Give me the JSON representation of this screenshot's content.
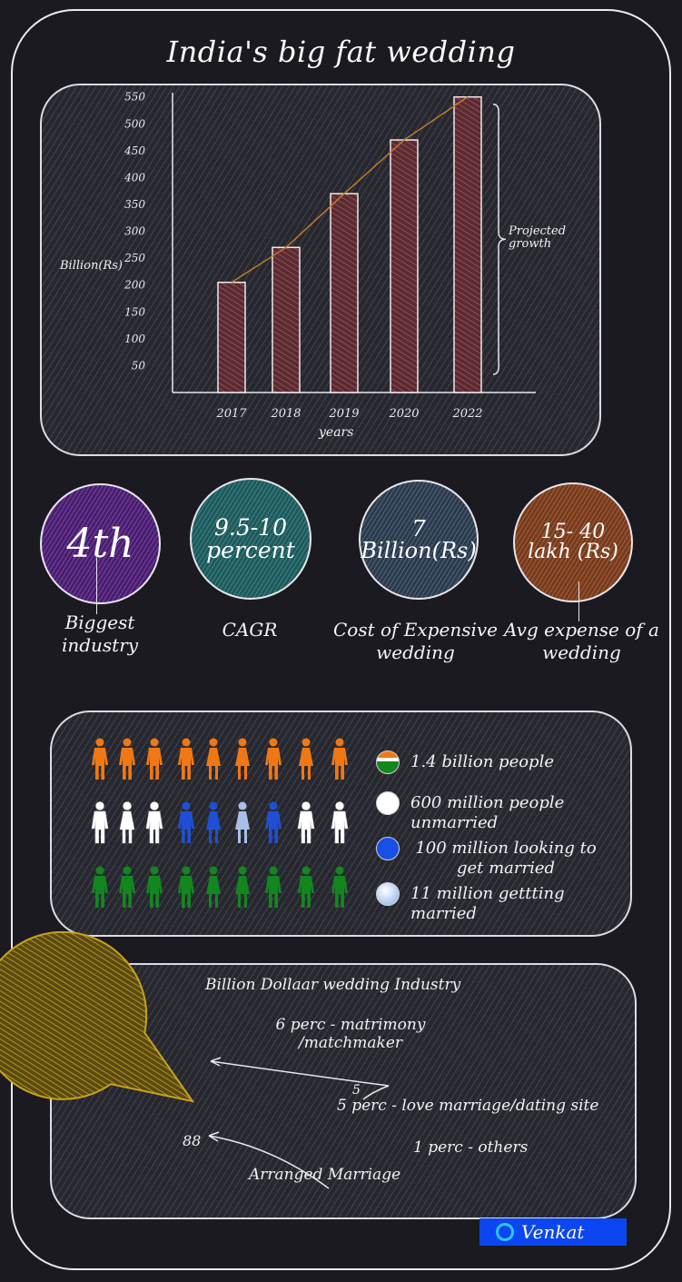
{
  "title": "India's big fat wedding",
  "chart_data": {
    "type": "bar",
    "title": "",
    "xlabel": "years",
    "ylabel": "Billion(Rs)",
    "categories": [
      "2017",
      "2018",
      "2019",
      "2020",
      "2022"
    ],
    "values": [
      205,
      270,
      370,
      470,
      550
    ],
    "yticks": [
      50,
      100,
      150,
      200,
      250,
      300,
      350,
      400,
      450,
      500,
      550
    ],
    "ylim": [
      0,
      558
    ],
    "annotation": "Projected growth",
    "trend_line": true,
    "bar_color": "#5a2b30",
    "trend_color": "#c47a2a"
  },
  "stats": [
    {
      "value": "4th",
      "label": "Biggest industry",
      "color": "#4b1c73"
    },
    {
      "value": "9.5-10 percent",
      "label": "CAGR",
      "color": "#1b5b5d"
    },
    {
      "value": "7 Billion(Rs)",
      "label": "Cost of Expensive wedding",
      "color": "#2a3b4f"
    },
    {
      "value": "15- 40 lakh (Rs)",
      "label": "Avg expense of a wedding",
      "color": "#7a3a1a"
    }
  ],
  "population": {
    "rows": [
      {
        "color": "#f07814",
        "count": 9
      },
      {
        "color": "#ffffff",
        "count": 9,
        "accents": [
          "#ffffff",
          "#ffffff",
          "#ffffff",
          "#1f4fd6",
          "#1f4fd6",
          "#a9bfe8",
          "#1f4fd6",
          "#ffffff",
          "#ffffff"
        ]
      },
      {
        "color": "#12861f",
        "count": 9
      }
    ],
    "legend": [
      {
        "text": "1.4 billion people",
        "color": "#6a8f2a"
      },
      {
        "text": "600 million people unmarried",
        "color": "#ffffff"
      },
      {
        "text": "100 million looking to get married",
        "color": "#1a4fe6"
      },
      {
        "text": "11 million gettting married",
        "color": "#a9c4f0"
      }
    ]
  },
  "industry": {
    "title": "Billion Dollaar wedding Industry",
    "pie_color": "#c9a21c",
    "slices": [
      {
        "label": "Arranged Marriage",
        "value": 88
      },
      {
        "label": "6 perc - matrimony /matchmaker",
        "value": 6
      },
      {
        "label": "5 perc - love marriage/dating site",
        "value": 5
      },
      {
        "label": "1 perc - others",
        "value": 1
      }
    ],
    "value_label": "88",
    "small_value": "5"
  },
  "author": "Venkat"
}
